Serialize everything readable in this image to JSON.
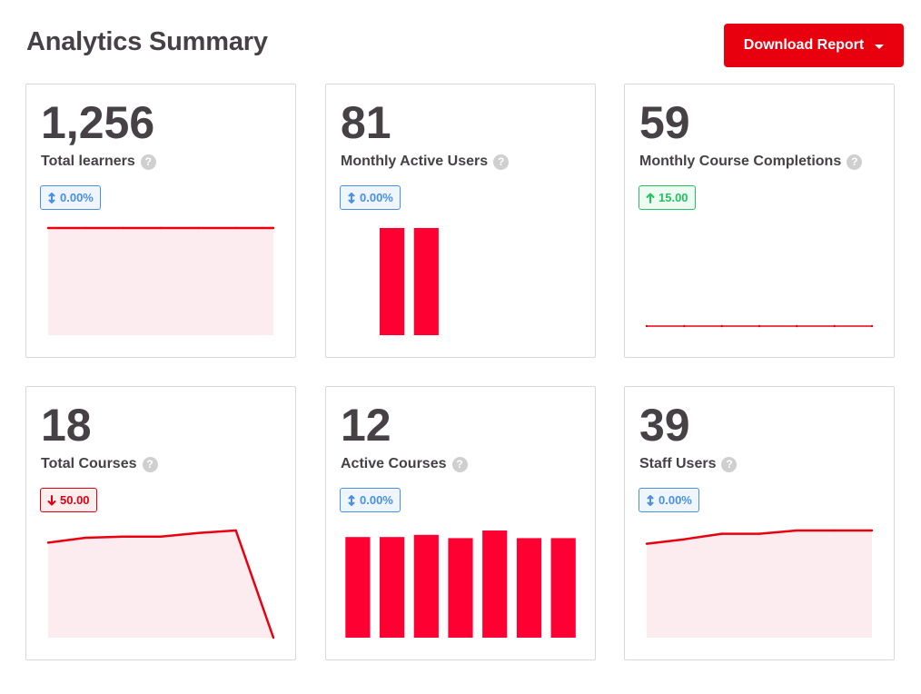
{
  "header": {
    "title": "Analytics Summary",
    "download_label": "Download Report"
  },
  "colors": {
    "accent": "#e8000f",
    "chart_line": "#e8000f",
    "chart_fill": "#fdecef",
    "bar": "#ff0033",
    "neutral_badge": "#4a90e2",
    "up_badge": "#21c55d",
    "down_badge": "#e00014"
  },
  "cards": [
    {
      "value": "1,256",
      "label": "Total learners",
      "badge": {
        "text": "0.00%",
        "trend": "neutral",
        "icon": "up-down-arrow-icon"
      },
      "chart_data": {
        "type": "area",
        "values": [
          1256,
          1256,
          1256,
          1256,
          1256,
          1256,
          1256
        ]
      }
    },
    {
      "value": "81",
      "label": "Monthly Active Users",
      "badge": {
        "text": "0.00%",
        "trend": "neutral",
        "icon": "up-down-arrow-icon"
      },
      "chart_data": {
        "type": "bar",
        "values": [
          0,
          81,
          81,
          0,
          0,
          0,
          0
        ]
      }
    },
    {
      "value": "59",
      "label": "Monthly Course Completions",
      "badge": {
        "text": "15.00",
        "trend": "up",
        "icon": "arrow-up-icon"
      },
      "chart_data": {
        "type": "line",
        "values": [
          0,
          0,
          0,
          0,
          0,
          0,
          0
        ]
      }
    },
    {
      "value": "18",
      "label": "Total Courses",
      "badge": {
        "text": "50.00",
        "trend": "down",
        "icon": "arrow-down-icon"
      },
      "chart_data": {
        "type": "area",
        "values": [
          78,
          82,
          83,
          83,
          86,
          88,
          0
        ]
      }
    },
    {
      "value": "12",
      "label": "Active Courses",
      "badge": {
        "text": "0.00%",
        "trend": "neutral",
        "icon": "up-down-arrow-icon"
      },
      "chart_data": {
        "type": "bar",
        "values": [
          92,
          92,
          94,
          91,
          98,
          91,
          91
        ]
      }
    },
    {
      "value": "39",
      "label": "Staff Users",
      "badge": {
        "text": "0.00%",
        "trend": "neutral",
        "icon": "up-down-arrow-icon"
      },
      "chart_data": {
        "type": "area",
        "values": [
          85,
          89,
          94,
          94,
          97,
          97,
          97
        ]
      }
    }
  ]
}
